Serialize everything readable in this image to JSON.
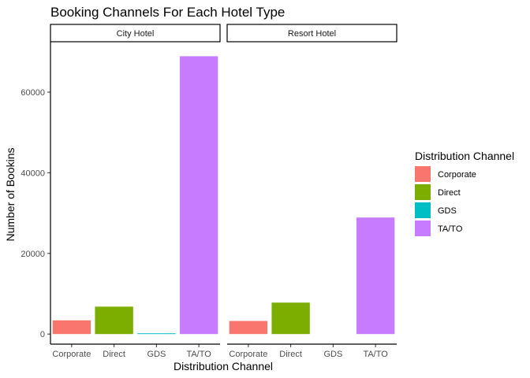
{
  "chart_data": {
    "type": "bar",
    "title": "Booking Channels For Each Hotel Type",
    "xlabel": "Distribution Channel",
    "ylabel": "Number of Bookins",
    "categories": [
      "Corporate",
      "Direct",
      "GDS",
      "TA/TO"
    ],
    "y_ticks": [
      0,
      20000,
      40000,
      60000
    ],
    "y_tick_labels": [
      "0",
      "20000",
      "40000",
      "60000"
    ],
    "ylim": [
      -2500,
      72500
    ],
    "grid": false,
    "legend": {
      "title": "Distribution Channel",
      "placement": "right",
      "entries": [
        "Corporate",
        "Direct",
        "GDS",
        "TA/TO"
      ]
    },
    "colors": {
      "Corporate": "#F8766D",
      "Direct": "#7CAE00",
      "GDS": "#00BFC4",
      "TA/TO": "#C77CFF"
    },
    "facets": [
      {
        "label": "City Hotel",
        "values": [
          3400,
          6800,
          190,
          68900
        ]
      },
      {
        "label": "Resort Hotel",
        "values": [
          3250,
          7800,
          0,
          28900
        ]
      }
    ]
  }
}
